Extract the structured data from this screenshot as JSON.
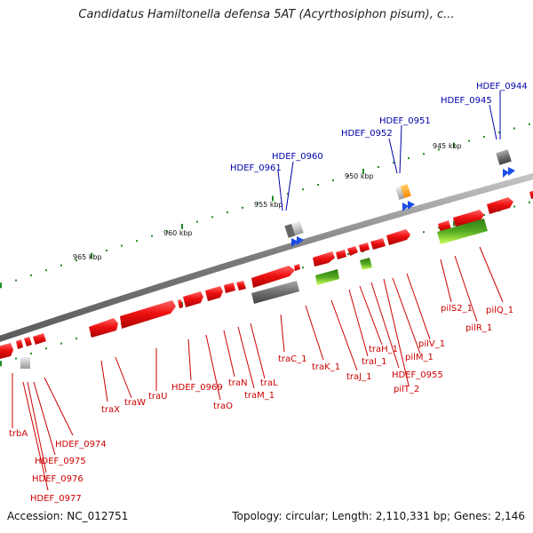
{
  "title": "Candidatus Hamiltonella defensa 5AT (Acyrthosiphon pisum), c...",
  "accession": "Accession: NC_012751",
  "topology": "Topology: circular; Length: 2,110,331 bp; Genes: 2,146",
  "colors": {
    "backbone": "#8a8a8a",
    "gene_red": "#ee1111",
    "label_red": "#cc0000",
    "label_blue": "#0000aa",
    "tick_green": "#228b22",
    "rna_green": "#3a9a1a",
    "pseudo_gray": "#6e6e6e",
    "blue_arrow": "#1a4ce6",
    "orange": "#ff9900"
  },
  "kbp_labels": [
    {
      "text": "965 kbp"
    },
    {
      "text": "960 kbp"
    },
    {
      "text": "955 kbp"
    },
    {
      "text": "950 kbp"
    },
    {
      "text": "945 kbp"
    }
  ],
  "gene_labels_blue": [
    {
      "text": "HDEF_0944"
    },
    {
      "text": "HDEF_0945"
    },
    {
      "text": "HDEF_0951"
    },
    {
      "text": "HDEF_0952"
    },
    {
      "text": "HDEF_0960"
    },
    {
      "text": "HDEF_0961"
    }
  ],
  "gene_labels_red": [
    {
      "text": "trbA"
    },
    {
      "text": "HDEF_0974"
    },
    {
      "text": "HDEF_0975"
    },
    {
      "text": "HDEF_0976"
    },
    {
      "text": "HDEF_0977"
    },
    {
      "text": "traX"
    },
    {
      "text": "traW"
    },
    {
      "text": "traU"
    },
    {
      "text": "HDEF_0969"
    },
    {
      "text": "traO"
    },
    {
      "text": "traN"
    },
    {
      "text": "traM_1"
    },
    {
      "text": "traL"
    },
    {
      "text": "traC_1"
    },
    {
      "text": "traK_1"
    },
    {
      "text": "traJ_1"
    },
    {
      "text": "traI_1"
    },
    {
      "text": "traH_1"
    },
    {
      "text": "HDEF_0955"
    },
    {
      "text": "pilT_2"
    },
    {
      "text": "pilM_1"
    },
    {
      "text": "pilV_1"
    },
    {
      "text": "pilS2_1"
    },
    {
      "text": "pilR_1"
    },
    {
      "text": "pilQ_1"
    }
  ]
}
